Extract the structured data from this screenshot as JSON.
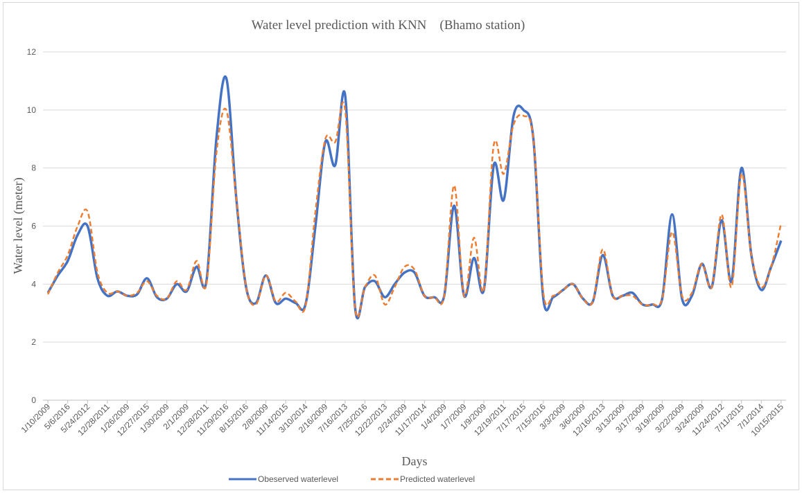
{
  "chart_data": {
    "type": "line",
    "title": "Water level prediction with KNN    (Bhamo station)",
    "x_label": "Days",
    "y_label": "Water level (meter)",
    "categories": [
      "1/10/2009",
      null,
      "5/6/2016",
      null,
      "5/24/2012",
      null,
      "12/28/2011",
      null,
      "1/26/2009",
      null,
      "12/27/2015",
      null,
      "1/30/2009",
      null,
      "2/1/2009",
      null,
      "12/28/2011",
      null,
      "11/29/2016",
      null,
      "8/15/2016",
      null,
      "2/8/2009",
      null,
      "11/14/2015",
      null,
      "3/10/2014",
      null,
      "2/16/2009",
      null,
      "7/16/2013",
      null,
      "7/25/2016",
      null,
      "12/22/2013",
      null,
      "2/24/2009",
      null,
      "11/17/2014",
      null,
      "1/4/2009",
      null,
      "1/7/2009",
      null,
      "1/9/2009",
      null,
      "12/19/2011",
      null,
      "7/17/2015",
      null,
      "7/15/2016",
      null,
      "3/3/2009",
      null,
      "3/6/2009",
      null,
      "12/16/2013",
      null,
      "3/13/2009",
      null,
      "3/17/2009",
      null,
      "3/19/2009",
      null,
      "3/22/2009",
      null,
      "3/24/2009",
      null,
      "11/24/2012",
      null,
      "7/11/2015",
      null,
      "7/1/2014",
      null,
      "10/15/2015"
    ],
    "series": [
      {
        "name": "Obeserved waterlevel",
        "color": "#4472c4",
        "dash": false,
        "values": [
          3.7,
          4.3,
          4.8,
          5.7,
          6.0,
          4.2,
          3.6,
          3.75,
          3.6,
          3.65,
          4.2,
          3.55,
          3.5,
          4.0,
          3.75,
          4.6,
          4.1,
          9.0,
          11.1,
          7.0,
          3.9,
          3.35,
          4.3,
          3.35,
          3.5,
          3.35,
          3.3,
          6.0,
          8.9,
          8.1,
          10.5,
          3.2,
          3.9,
          4.1,
          3.55,
          4.0,
          4.4,
          4.4,
          3.6,
          3.55,
          3.6,
          6.7,
          3.6,
          4.9,
          3.8,
          8.1,
          6.9,
          9.8,
          10.0,
          9.0,
          3.5,
          3.55,
          3.8,
          4.0,
          3.5,
          3.4,
          5.0,
          3.6,
          3.6,
          3.7,
          3.3,
          3.3,
          3.5,
          6.4,
          3.5,
          3.6,
          4.7,
          3.9,
          6.2,
          4.1,
          8.0,
          5.0,
          3.8,
          4.6,
          5.5
        ]
      },
      {
        "name": "Predicted waterlevel",
        "color": "#ed7d31",
        "dash": true,
        "values": [
          3.65,
          4.4,
          5.0,
          6.0,
          6.5,
          4.4,
          3.7,
          3.75,
          3.6,
          3.7,
          4.1,
          3.6,
          3.5,
          4.1,
          3.8,
          4.8,
          4.0,
          8.5,
          10.0,
          7.0,
          3.9,
          3.3,
          4.3,
          3.4,
          3.7,
          3.4,
          3.25,
          6.5,
          9.0,
          8.9,
          10.0,
          3.2,
          3.9,
          4.3,
          3.3,
          3.9,
          4.6,
          4.5,
          3.6,
          3.55,
          3.6,
          7.4,
          3.6,
          5.6,
          3.8,
          8.8,
          7.8,
          9.5,
          9.8,
          9.0,
          3.7,
          3.6,
          3.8,
          4.0,
          3.5,
          3.4,
          5.2,
          3.6,
          3.6,
          3.6,
          3.3,
          3.3,
          3.5,
          5.8,
          3.6,
          3.7,
          4.7,
          3.9,
          6.4,
          3.9,
          7.8,
          5.0,
          3.9,
          4.6,
          6.1
        ]
      }
    ],
    "ylim": [
      0,
      12
    ],
    "yticks": [
      0,
      2,
      4,
      6,
      8,
      10,
      12
    ],
    "grid": true
  }
}
